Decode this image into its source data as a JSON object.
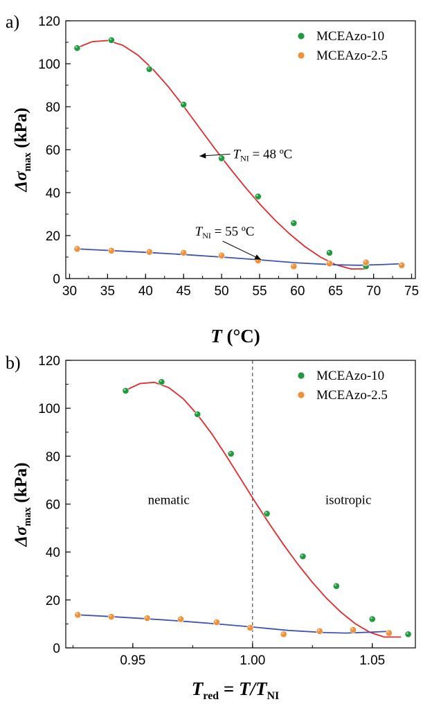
{
  "colors": {
    "green_marker": "#1f9a3f",
    "orange_marker": "#f0913a",
    "red_fit": "#e8262a",
    "blue_fit": "#3a52b4",
    "axis": "#000000"
  },
  "chart_data": [
    {
      "panel_label": "a)",
      "type": "scatter",
      "xlabel_main": "T",
      "xlabel_unit": " (°C)",
      "ylabel_main": "Δσ",
      "ylabel_sub": "max",
      "ylabel_unit": " (kPa)",
      "xlim": [
        29.5,
        75.5
      ],
      "ylim": [
        0,
        120
      ],
      "xticks": [
        30,
        35,
        40,
        45,
        50,
        55,
        60,
        65,
        70,
        75
      ],
      "xtick_labels": [
        "30",
        "35",
        "40",
        "45",
        "50",
        "55",
        "60",
        "65",
        "70",
        "75"
      ],
      "yticks": [
        0,
        20,
        40,
        60,
        80,
        100,
        120
      ],
      "ytick_labels": [
        "0",
        "20",
        "40",
        "60",
        "80",
        "100",
        "120"
      ],
      "legend_position": "top-right",
      "series": [
        {
          "name": "MCEAzo-10",
          "marker_color": "green_marker",
          "x": [
            31,
            35.5,
            40.5,
            45,
            50,
            54.8,
            59.5,
            64.2,
            69
          ],
          "y": [
            107.3,
            111,
            97.5,
            81,
            56,
            38.2,
            25.8,
            12,
            5.7
          ]
        },
        {
          "name": "MCEAzo-2.5",
          "marker_color": "orange_marker",
          "x": [
            31,
            35.5,
            40.5,
            45,
            50,
            54.8,
            59.5,
            64.2,
            69,
            73.7
          ],
          "y": [
            13.8,
            13,
            12.4,
            12,
            10.7,
            8.4,
            5.7,
            7,
            7.5,
            6.2
          ]
        }
      ],
      "fits": [
        {
          "color": "red_fit",
          "x": [
            31,
            33,
            35,
            37,
            39,
            41,
            43,
            45,
            47,
            49,
            51,
            53,
            55,
            57,
            59,
            61,
            63,
            65,
            67,
            69
          ],
          "y": [
            107.5,
            110.3,
            110.8,
            108.6,
            104.0,
            97.3,
            89.3,
            80.2,
            70.6,
            61.0,
            51.8,
            43.0,
            34.8,
            27.3,
            20.6,
            14.8,
            10.0,
            6.5,
            4.5,
            4.5
          ]
        },
        {
          "color": "blue_fit",
          "x": [
            31,
            35,
            40,
            45,
            50,
            55,
            60,
            65,
            68,
            71,
            73.7
          ],
          "y": [
            13.8,
            13.1,
            12.2,
            11.2,
            10.0,
            8.7,
            7.3,
            6.4,
            6.2,
            6.5,
            6.9
          ]
        }
      ],
      "annotations": [
        {
          "text_main": "T",
          "text_sub": "NI",
          "text_rest": " = 48 ºC",
          "x": 51.5,
          "y": 56,
          "arrow_to": [
            47.1,
            57
          ]
        },
        {
          "text_main": "T",
          "text_sub": "NI",
          "text_rest": " = 55 ºC",
          "x": 46.5,
          "y": 20,
          "arrow_to": [
            55.2,
            8.8
          ]
        }
      ]
    },
    {
      "panel_label": "b)",
      "type": "scatter",
      "xlabel_main": "T",
      "xlabel_sub": "red",
      "xlabel_mid": " = ",
      "xlabel_main2": "T",
      "xlabel_slash": "/",
      "xlabel_main3": "T",
      "xlabel_sub2": "NI",
      "ylabel_main": "Δσ",
      "ylabel_sub": "max",
      "ylabel_unit": " (kPa)",
      "xlim": [
        0.922,
        1.068
      ],
      "ylim": [
        0,
        120
      ],
      "xticks": [
        0.95,
        1.0,
        1.05
      ],
      "xtick_labels": [
        "0.95",
        "1.00",
        "1.05"
      ],
      "yticks": [
        0,
        20,
        40,
        60,
        80,
        100,
        120
      ],
      "ytick_labels": [
        "0",
        "20",
        "40",
        "60",
        "80",
        "100",
        "120"
      ],
      "legend_position": "top-right",
      "vline": 1.0,
      "region_labels": [
        {
          "text": "nematic",
          "x": 0.965,
          "y": 60
        },
        {
          "text": "isotropic",
          "x": 1.04,
          "y": 60
        }
      ],
      "series": [
        {
          "name": "MCEAzo-10",
          "marker_color": "green_marker",
          "x": [
            0.947,
            0.962,
            0.977,
            0.991,
            1.006,
            1.021,
            1.035,
            1.05,
            1.065
          ],
          "y": [
            107.3,
            111,
            97.5,
            81,
            56,
            38.2,
            25.8,
            12,
            5.7
          ]
        },
        {
          "name": "MCEAzo-2.5",
          "marker_color": "orange_marker",
          "x": [
            0.927,
            0.941,
            0.956,
            0.97,
            0.985,
            0.999,
            1.013,
            1.028,
            1.042,
            1.057
          ],
          "y": [
            13.8,
            13,
            12.4,
            12,
            10.7,
            8.4,
            5.7,
            7,
            7.5,
            6.2
          ]
        }
      ],
      "fits": [
        {
          "color": "red_fit",
          "x": [
            0.947,
            0.953,
            0.959,
            0.965,
            0.971,
            0.977,
            0.983,
            0.989,
            0.995,
            1.001,
            1.007,
            1.013,
            1.019,
            1.025,
            1.031,
            1.037,
            1.043,
            1.049,
            1.055,
            1.062
          ],
          "y": [
            107.5,
            110.3,
            110.8,
            108.6,
            104.0,
            97.3,
            89.3,
            80.2,
            70.6,
            61.0,
            51.8,
            43.0,
            34.8,
            27.3,
            20.6,
            14.8,
            10.0,
            6.5,
            4.5,
            4.5
          ]
        },
        {
          "color": "blue_fit",
          "x": [
            0.927,
            0.94,
            0.955,
            0.97,
            0.985,
            1.0,
            1.015,
            1.03,
            1.039,
            1.048,
            1.057
          ],
          "y": [
            13.8,
            13.1,
            12.2,
            11.2,
            10.0,
            8.7,
            7.3,
            6.4,
            6.2,
            6.5,
            6.9
          ]
        }
      ]
    }
  ]
}
